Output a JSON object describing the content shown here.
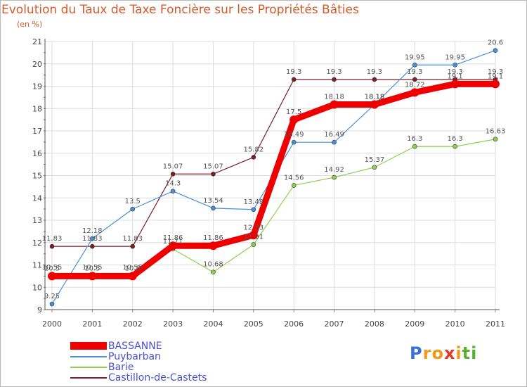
{
  "header": {
    "title": "Evolution du Taux de Taxe Foncière sur les Propriétés Bâties",
    "subtitle": "(en %)"
  },
  "logo": {
    "text": "Proxiti",
    "letters": [
      "P",
      "r",
      "o",
      "x",
      "i",
      "t",
      "i"
    ]
  },
  "chart_data": {
    "type": "line",
    "title": "Evolution du Taux de Taxe Foncière sur les Propriétés Bâties",
    "ylabel": "(en %)",
    "xlabel": "",
    "x": [
      "2000",
      "2001",
      "2002",
      "2003",
      "2004",
      "2005",
      "2006",
      "2007",
      "2008",
      "2009",
      "2010",
      "2011"
    ],
    "ylim": [
      9,
      21
    ],
    "yticks": [
      "9",
      "10",
      "11",
      "12",
      "13",
      "14",
      "15",
      "16",
      "17",
      "18",
      "19",
      "20",
      "21"
    ],
    "grid": true,
    "legend_position": "bottom-left",
    "series": [
      {
        "name": "Castillon-de-Castets",
        "color": "#7a1f28",
        "values": [
          11.83,
          11.83,
          11.83,
          15.07,
          15.07,
          15.82,
          19.3,
          19.3,
          19.3,
          19.3,
          19.3,
          19.3
        ],
        "labels": [
          "11.83",
          "11.83",
          "11.83",
          "15.07",
          "15.07",
          "15.82",
          "19.3",
          "19.3",
          "19.3",
          "19.3",
          "19.3",
          "19.3"
        ]
      },
      {
        "name": "Puybarban",
        "color": "#4a90d9",
        "values": [
          9.25,
          12.18,
          13.5,
          14.3,
          13.54,
          13.48,
          16.49,
          16.49,
          18.18,
          19.95,
          19.95,
          20.6
        ],
        "labels": [
          "9.25",
          "12.18",
          "13.5",
          "14.3",
          "13.54",
          "13.48",
          "16.49",
          "16.49",
          "18.18",
          "19.95",
          "19.95",
          "20.6"
        ]
      },
      {
        "name": "Barie",
        "color": "#8fd14f",
        "values": [
          10.55,
          10.55,
          10.55,
          11.71,
          10.68,
          11.91,
          14.56,
          14.92,
          15.37,
          16.3,
          16.3,
          16.63
        ],
        "labels": [
          "10.55",
          "10.55",
          "10.55",
          "11.71",
          "10.68",
          "11.91",
          "14.56",
          "14.92",
          "15.37",
          "16.3",
          "16.3",
          "16.63"
        ]
      },
      {
        "name": "BASSANNE",
        "color": "#ee0000",
        "values": [
          10.5,
          10.5,
          10.5,
          11.86,
          11.86,
          12.33,
          17.5,
          18.18,
          18.18,
          18.72,
          19.1,
          19.1
        ],
        "labels": [
          "10.5",
          "10.5",
          "10.5",
          "11.86",
          "11.86",
          "12.33",
          "17.5",
          "18.18",
          "18.18",
          "18.72",
          "19.1",
          "19.1"
        ]
      }
    ],
    "legend": [
      "BASSANNE",
      "Puybarban",
      "Barie",
      "Castillon-de-Castets"
    ]
  }
}
